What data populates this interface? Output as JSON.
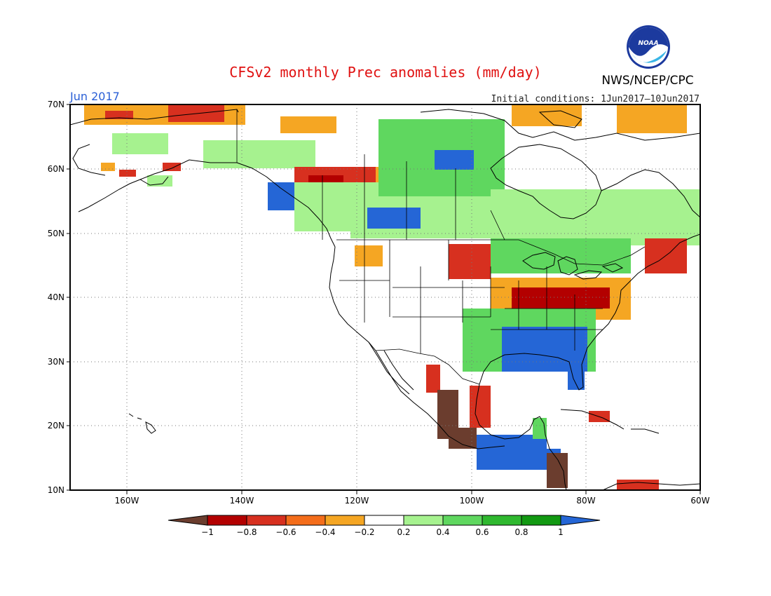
{
  "title": "CFSv2 monthly Prec anomalies (mm/day)",
  "valid_month": "Jun 2017",
  "initial_conditions": "Initial conditions: 1Jun2017–10Jun2017",
  "agency": "NWS/NCEP/CPC",
  "logo_text": "NOAA",
  "lat_labels": [
    "70N",
    "60N",
    "50N",
    "40N",
    "30N",
    "20N",
    "10N"
  ],
  "lon_labels": [
    "160W",
    "140W",
    "120W",
    "100W",
    "80W",
    "60W"
  ],
  "colorbar": {
    "labels": [
      "−1",
      "−0.8",
      "−0.6",
      "−0.4",
      "−0.2",
      "0.2",
      "0.4",
      "0.6",
      "0.8",
      "1"
    ],
    "colors": [
      "#6b3d2e",
      "#b30000",
      "#d7301f",
      "#f46d1a",
      "#f5a623",
      "#ffffff",
      "#a6f28f",
      "#5fd75f",
      "#2fb82f",
      "#129912",
      "#2566d6"
    ]
  },
  "map_extent": {
    "lon_min": -170,
    "lon_max": -60,
    "lat_min": 10,
    "lat_max": 70
  },
  "anomaly_regions": [
    {
      "name": "alaska-north-coast",
      "level": "-0.4",
      "color": "#f5a623"
    },
    {
      "name": "alaska-north-coast-core",
      "level": "-0.6",
      "color": "#d7301f"
    },
    {
      "name": "alaska-gulf",
      "level": "-0.6",
      "color": "#d7301f"
    },
    {
      "name": "yukon-wet",
      "level": "0.4",
      "color": "#a6f28f"
    },
    {
      "name": "bc-dry-band",
      "level": "-0.6",
      "color": "#d7301f"
    },
    {
      "name": "bc-dry-core",
      "level": "-0.8",
      "color": "#b30000"
    },
    {
      "name": "bc-coast-wet",
      "level": "1",
      "color": "#2566d6"
    },
    {
      "name": "nw-territories-wet",
      "level": "0.6",
      "color": "#5fd75f"
    },
    {
      "name": "nw-territories-core",
      "level": "1",
      "color": "#2566d6"
    },
    {
      "name": "prairies-wet",
      "level": "0.4",
      "color": "#a6f28f"
    },
    {
      "name": "alberta-core",
      "level": "1",
      "color": "#2566d6"
    },
    {
      "name": "ontario-quebec-wet",
      "level": "0.4",
      "color": "#a6f28f"
    },
    {
      "name": "great-lakes-wet",
      "level": "0.6",
      "color": "#5fd75f"
    },
    {
      "name": "ohio-valley-dry",
      "level": "-0.4",
      "color": "#f5a623"
    },
    {
      "name": "ohio-valley-core",
      "level": "-0.8",
      "color": "#b30000"
    },
    {
      "name": "southeast-wet",
      "level": "1",
      "color": "#2566d6"
    },
    {
      "name": "gulf-coast-wet",
      "level": "0.6",
      "color": "#5fd75f"
    },
    {
      "name": "nebraska-dry",
      "level": "-0.6",
      "color": "#d7301f"
    },
    {
      "name": "mexico-west-coast",
      "level": "-1",
      "color": "#6b3d2e"
    },
    {
      "name": "central-america-wet",
      "level": "1",
      "color": "#2566d6"
    },
    {
      "name": "central-america-dry",
      "level": "-1",
      "color": "#6b3d2e"
    },
    {
      "name": "atlantic-canada-dry",
      "level": "-0.6",
      "color": "#d7301f"
    },
    {
      "name": "greenland-dry",
      "level": "-0.4",
      "color": "#f5a623"
    },
    {
      "name": "caribbean-dry",
      "level": "-0.6",
      "color": "#d7301f"
    }
  ]
}
